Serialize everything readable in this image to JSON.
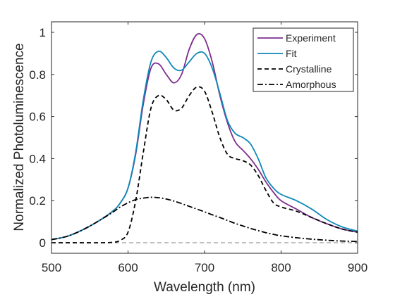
{
  "chart_data": {
    "type": "line",
    "xlabel": "Wavelength (nm)",
    "ylabel": "Normalized Photoluminescence",
    "xlim": [
      500,
      900
    ],
    "ylim": [
      -0.05,
      1.05
    ],
    "xticks": [
      500,
      600,
      700,
      800,
      900
    ],
    "xtick_labels": [
      "500",
      "600",
      "700",
      "800",
      "900"
    ],
    "yticks": [
      0,
      0.2,
      0.4,
      0.6,
      0.8,
      1
    ],
    "ytick_labels": [
      "0",
      "0.2",
      "0.4",
      "0.6",
      "0.8",
      "1"
    ],
    "grid": false,
    "legend_position": "top-right",
    "baseline": {
      "y": 0,
      "style": "dashed",
      "color": "#808080"
    },
    "x": [
      500,
      520,
      540,
      560,
      580,
      590,
      600,
      610,
      620,
      630,
      640,
      650,
      660,
      670,
      680,
      690,
      700,
      710,
      720,
      730,
      740,
      750,
      760,
      770,
      780,
      790,
      800,
      820,
      840,
      860,
      880,
      900
    ],
    "series": [
      {
        "name": "Experiment",
        "color": "#7e2f8e",
        "line_style": "solid",
        "values": [
          0.015,
          0.03,
          0.06,
          0.1,
          0.15,
          0.19,
          0.26,
          0.42,
          0.66,
          0.83,
          0.85,
          0.8,
          0.76,
          0.8,
          0.92,
          0.99,
          0.97,
          0.86,
          0.7,
          0.57,
          0.48,
          0.44,
          0.4,
          0.35,
          0.29,
          0.24,
          0.2,
          0.16,
          0.12,
          0.09,
          0.065,
          0.05
        ]
      },
      {
        "name": "Fit",
        "color": "#0f88b8",
        "line_style": "solid",
        "values": [
          0.015,
          0.03,
          0.06,
          0.1,
          0.15,
          0.19,
          0.26,
          0.43,
          0.68,
          0.86,
          0.91,
          0.88,
          0.83,
          0.82,
          0.86,
          0.9,
          0.9,
          0.83,
          0.71,
          0.58,
          0.52,
          0.5,
          0.47,
          0.4,
          0.31,
          0.26,
          0.23,
          0.2,
          0.16,
          0.11,
          0.075,
          0.055
        ]
      },
      {
        "name": "Crystalline",
        "color": "#000000",
        "line_style": "dashed",
        "values": [
          0.0,
          0.0,
          0.0,
          0.0,
          0.002,
          0.012,
          0.05,
          0.2,
          0.43,
          0.64,
          0.7,
          0.68,
          0.63,
          0.64,
          0.7,
          0.74,
          0.72,
          0.62,
          0.5,
          0.42,
          0.4,
          0.39,
          0.37,
          0.32,
          0.25,
          0.19,
          0.17,
          0.15,
          0.12,
          0.09,
          0.065,
          0.05
        ]
      },
      {
        "name": "Amorphous",
        "color": "#000000",
        "line_style": "dashdot",
        "values": [
          0.015,
          0.03,
          0.06,
          0.1,
          0.145,
          0.17,
          0.19,
          0.205,
          0.212,
          0.216,
          0.214,
          0.208,
          0.198,
          0.186,
          0.173,
          0.16,
          0.147,
          0.133,
          0.12,
          0.106,
          0.092,
          0.08,
          0.068,
          0.058,
          0.048,
          0.04,
          0.033,
          0.024,
          0.017,
          0.012,
          0.008,
          0.006
        ]
      }
    ]
  }
}
